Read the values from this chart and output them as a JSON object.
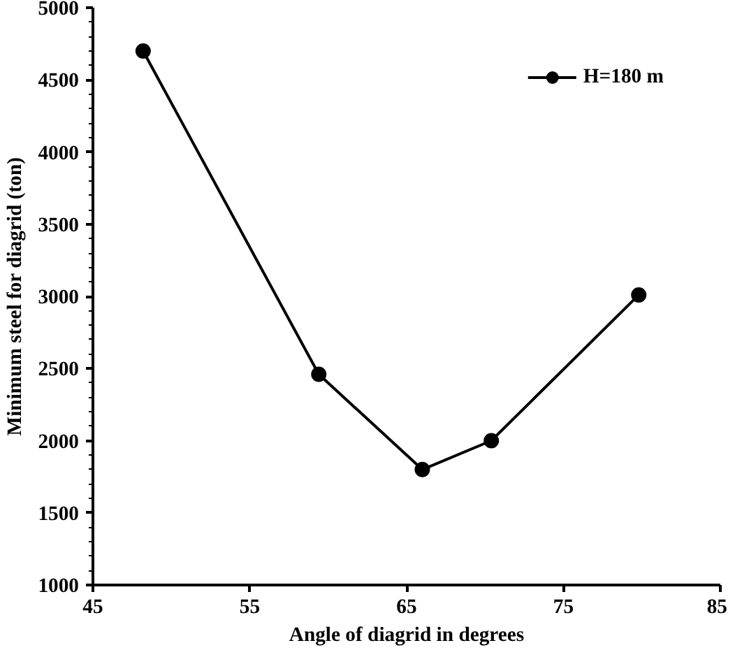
{
  "chart_data": {
    "type": "line",
    "xlabel": "Angle of diagrid in degrees",
    "ylabel": "Minimum steel for diagrid (ton)",
    "x": [
      48.2,
      59.4,
      66,
      70.4,
      79.8
    ],
    "series": [
      {
        "name": "H=180 m",
        "color": "#000000",
        "values": [
          4700,
          2460,
          1800,
          2000,
          3010
        ]
      }
    ],
    "xlim": [
      45,
      85
    ],
    "xticks": [
      45,
      55,
      65,
      75,
      85
    ],
    "ylim": [
      1000,
      5000
    ],
    "yticks": [
      1000,
      1500,
      2000,
      2500,
      3000,
      3500,
      4000,
      4500,
      5000
    ],
    "grid": false,
    "legend": "top right",
    "marker": "circle",
    "line_style": "solid"
  }
}
